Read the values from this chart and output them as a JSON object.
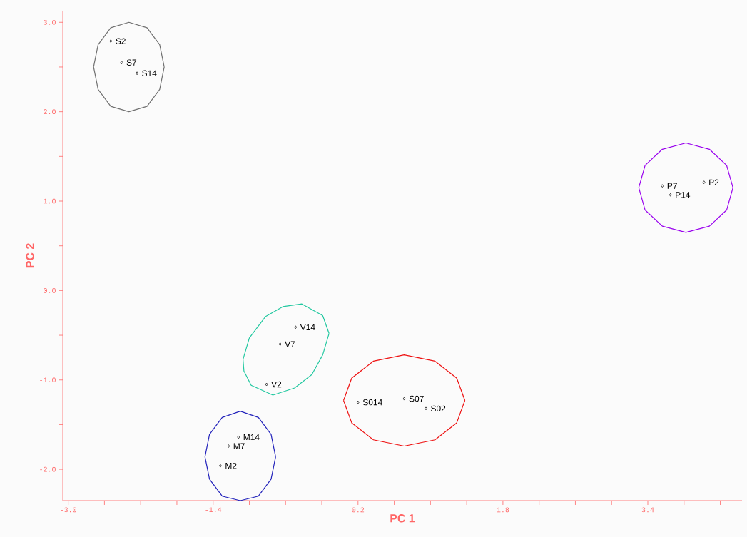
{
  "chart_data": {
    "type": "scatter",
    "xlabel": "PC  1",
    "ylabel": "PC 2",
    "marker": "diamond",
    "grid": false,
    "xlim": [
      -3.06,
      4.44
    ],
    "ylim": [
      -2.35,
      3.13
    ],
    "xticks": [
      {
        "value": -3.0,
        "label": "-3.0"
      },
      {
        "value": -2.6,
        "label": null
      },
      {
        "value": -2.2,
        "label": null
      },
      {
        "value": -1.8,
        "label": null
      },
      {
        "value": -1.4,
        "label": "-1.4"
      },
      {
        "value": -1.0,
        "label": null
      },
      {
        "value": -0.6,
        "label": null
      },
      {
        "value": -0.2,
        "label": null
      },
      {
        "value": 0.2,
        "label": "0.2"
      },
      {
        "value": 0.6,
        "label": null
      },
      {
        "value": 1.0,
        "label": null
      },
      {
        "value": 1.4,
        "label": null
      },
      {
        "value": 1.8,
        "label": "1.8"
      },
      {
        "value": 2.2,
        "label": null
      },
      {
        "value": 2.6,
        "label": null
      },
      {
        "value": 3.0,
        "label": null
      },
      {
        "value": 3.4,
        "label": "3.4"
      },
      {
        "value": 3.8,
        "label": null
      },
      {
        "value": 4.2,
        "label": null
      }
    ],
    "yticks": [
      {
        "value": -2.0,
        "label": "-2.0"
      },
      {
        "value": -1.5,
        "label": null
      },
      {
        "value": -1.0,
        "label": "-1.0"
      },
      {
        "value": -0.5,
        "label": null
      },
      {
        "value": 0.0,
        "label": "0.0"
      },
      {
        "value": 0.5,
        "label": null
      },
      {
        "value": 1.0,
        "label": "1.0"
      },
      {
        "value": 1.5,
        "label": null
      },
      {
        "value": 2.0,
        "label": "2.0"
      },
      {
        "value": 2.5,
        "label": null
      },
      {
        "value": 3.0,
        "label": "3.0"
      }
    ],
    "series": [
      {
        "type": "line",
        "marker": "none",
        "color": "#707070",
        "x": [
          -2.72,
          -2.67,
          -2.53,
          -2.33,
          -2.13,
          -1.99,
          -1.94,
          null,
          -2.72,
          -2.67,
          -2.53,
          -2.33,
          -2.13,
          -1.99,
          -1.94
        ],
        "values": [
          2.5,
          2.75,
          2.94,
          3.0,
          2.94,
          2.75,
          2.5,
          null,
          2.5,
          2.25,
          2.06,
          2.0,
          2.06,
          2.25,
          2.5
        ]
      },
      {
        "type": "line",
        "marker": "none",
        "color": "#9900ee",
        "x": [
          3.3,
          3.37,
          3.56,
          3.82,
          4.08,
          4.27,
          4.34,
          null,
          3.3,
          3.37,
          3.56,
          3.82,
          4.08,
          4.27,
          4.34
        ],
        "values": [
          1.15,
          1.4,
          1.58,
          1.65,
          1.58,
          1.4,
          1.15,
          null,
          1.15,
          0.9,
          0.72,
          0.65,
          0.72,
          0.9,
          1.15
        ]
      },
      {
        "type": "line",
        "marker": "none",
        "color": "#ee1111",
        "x": [
          0.04,
          0.13,
          0.37,
          0.71,
          1.05,
          1.29,
          1.38,
          null,
          0.04,
          0.13,
          0.37,
          0.71,
          1.05,
          1.29,
          1.38
        ],
        "values": [
          -1.23,
          -0.98,
          -0.79,
          -0.72,
          -0.79,
          -0.98,
          -1.23,
          null,
          -1.23,
          -1.48,
          -1.67,
          -1.74,
          -1.67,
          -1.48,
          -1.23
        ]
      },
      {
        "type": "line",
        "marker": "none",
        "color": "#2222bb",
        "x": [
          -1.49,
          -1.44,
          -1.3,
          -1.1,
          -0.9,
          -0.76,
          -0.71,
          null,
          -1.49,
          -1.44,
          -1.3,
          -1.1,
          -0.9,
          -0.76,
          -0.71
        ],
        "values": [
          -1.86,
          -1.61,
          -1.42,
          -1.35,
          -1.42,
          -1.61,
          -1.86,
          null,
          -1.86,
          -2.11,
          -2.3,
          -2.35,
          -2.3,
          -2.11,
          -1.86
        ]
      },
      {
        "type": "line",
        "marker": "none",
        "color": "#22c8a0",
        "x": [
          -1.07,
          -1.0,
          -0.82,
          -0.63,
          -0.42,
          -0.19,
          -0.12,
          null,
          -1.07,
          -1.06,
          -0.98,
          -0.74,
          -0.5,
          -0.31,
          -0.19,
          -0.12
        ],
        "values": [
          -0.77,
          -0.53,
          -0.29,
          -0.18,
          -0.15,
          -0.28,
          -0.48,
          null,
          -0.77,
          -0.9,
          -1.06,
          -1.17,
          -1.09,
          -0.94,
          -0.72,
          -0.48
        ]
      },
      {
        "color": "#000000",
        "x": [
          -2.53,
          -2.41,
          -2.24,
          3.56,
          4.02,
          3.65,
          -0.49,
          -0.66,
          -0.81,
          0.2,
          0.71,
          0.95,
          -1.12,
          -1.23,
          -1.32
        ],
        "values": [
          2.79,
          2.55,
          2.43,
          1.17,
          1.21,
          1.07,
          -0.41,
          -0.6,
          -1.05,
          -1.25,
          -1.21,
          -1.32,
          -1.64,
          -1.74,
          -1.96
        ]
      }
    ],
    "annotations": [
      {
        "text": "S2",
        "x": -2.53,
        "y": 2.79
      },
      {
        "text": "S7",
        "x": -2.41,
        "y": 2.55
      },
      {
        "text": "S14",
        "x": -2.24,
        "y": 2.43
      },
      {
        "text": "P7",
        "x": 3.56,
        "y": 1.17
      },
      {
        "text": "P2",
        "x": 4.02,
        "y": 1.21
      },
      {
        "text": "P14",
        "x": 3.65,
        "y": 1.07
      },
      {
        "text": "V14",
        "x": -0.49,
        "y": -0.41
      },
      {
        "text": "V7",
        "x": -0.66,
        "y": -0.6
      },
      {
        "text": "V2",
        "x": -0.81,
        "y": -1.05
      },
      {
        "text": "S014",
        "x": 0.2,
        "y": -1.25
      },
      {
        "text": "S07",
        "x": 0.71,
        "y": -1.21
      },
      {
        "text": "S02",
        "x": 0.95,
        "y": -1.32
      },
      {
        "text": "M14",
        "x": -1.12,
        "y": -1.64
      },
      {
        "text": "M7",
        "x": -1.23,
        "y": -1.74
      },
      {
        "text": "M2",
        "x": -1.32,
        "y": -1.96
      }
    ]
  }
}
